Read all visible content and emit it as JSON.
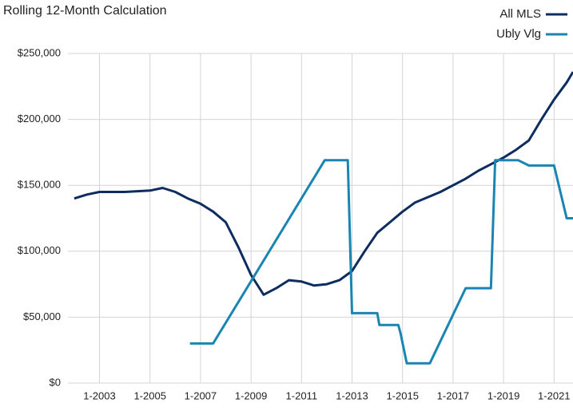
{
  "chart_data": {
    "type": "line",
    "title": "Rolling 12-Month Calculation",
    "xlim": [
      "10-2001",
      "10-2021"
    ],
    "xticks": [
      "1-2003",
      "1-2005",
      "1-2007",
      "1-2009",
      "1-2011",
      "1-2013",
      "1-2015",
      "1-2017",
      "1-2019",
      "1-2021"
    ],
    "ylim": [
      0,
      250000
    ],
    "yticks": [
      {
        "value": 0,
        "label": "$0"
      },
      {
        "value": 50000,
        "label": "$50,000"
      },
      {
        "value": 100000,
        "label": "$100,000"
      },
      {
        "value": 150000,
        "label": "$150,000"
      },
      {
        "value": 200000,
        "label": "$200,000"
      },
      {
        "value": 250000,
        "label": "$250,000"
      }
    ],
    "grid": true,
    "legend": "top-right",
    "series": [
      {
        "name": "All MLS",
        "color": "#0d2d5e",
        "x": [
          "1-2002",
          "7-2002",
          "1-2003",
          "7-2003",
          "1-2004",
          "7-2004",
          "1-2005",
          "7-2005",
          "1-2006",
          "7-2006",
          "1-2007",
          "7-2007",
          "1-2008",
          "7-2008",
          "1-2009",
          "7-2009",
          "1-2010",
          "7-2010",
          "1-2011",
          "7-2011",
          "1-2012",
          "7-2012",
          "1-2013",
          "7-2013",
          "1-2014",
          "7-2014",
          "1-2015",
          "7-2015",
          "1-2016",
          "7-2016",
          "1-2017",
          "7-2017",
          "1-2018",
          "7-2018",
          "1-2019",
          "7-2019",
          "1-2020",
          "7-2020",
          "1-2021",
          "7-2021",
          "10-2021"
        ],
        "values": [
          140000,
          143000,
          145000,
          145000,
          145000,
          145500,
          146000,
          148000,
          145000,
          140000,
          136000,
          130000,
          122000,
          103000,
          82000,
          67000,
          72000,
          78000,
          77000,
          74000,
          75000,
          78000,
          85000,
          100000,
          114000,
          122000,
          130000,
          137000,
          141000,
          145000,
          150000,
          155000,
          161000,
          166000,
          171000,
          177000,
          184000,
          200000,
          215000,
          228000,
          236000
        ]
      },
      {
        "name": "Ubly Vlg",
        "color": "#1a85b0",
        "x": [
          "8-2006",
          "7-2007",
          "12-2011",
          "11-2012",
          "1-2013",
          "1-2014",
          "2-2014",
          "11-2014",
          "12-2014",
          "3-2015",
          "2-2016",
          "7-2017",
          "7-2018",
          "9-2018",
          "8-2019",
          "1-2020",
          "1-2021",
          "7-2021",
          "10-2021"
        ],
        "values": [
          30000,
          30000,
          169000,
          169000,
          53000,
          53000,
          44000,
          44000,
          38000,
          15000,
          15000,
          72000,
          72000,
          169000,
          169000,
          165000,
          165000,
          125000,
          125000
        ]
      }
    ]
  }
}
